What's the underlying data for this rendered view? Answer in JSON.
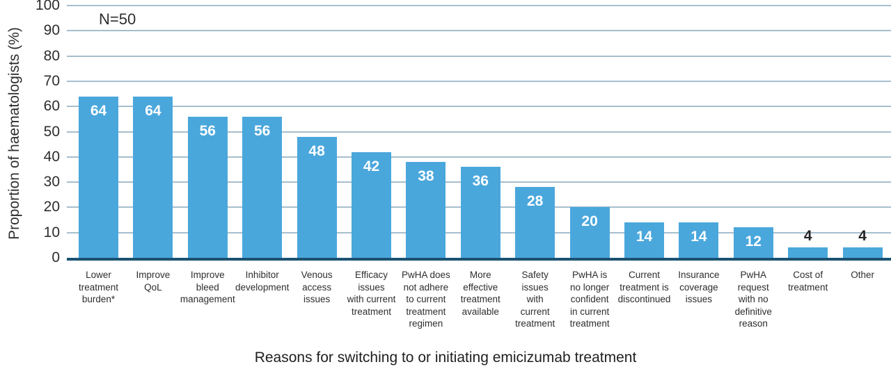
{
  "chart_data": {
    "type": "bar",
    "title": "",
    "xlabel": "Reasons for switching to or initiating emicizumab treatment",
    "ylabel": "Proportion of haematologists (%)",
    "annotation": "N=50",
    "ylim": [
      0,
      100
    ],
    "yticks": [
      0,
      10,
      20,
      30,
      40,
      50,
      60,
      70,
      80,
      90,
      100
    ],
    "grid": "horizontal",
    "legend": "none",
    "bar_color": "#4AA7DC",
    "axis_color": "#1B5272",
    "gridline_color": "#A6BECD",
    "value_label_inside_color": "#ffffff",
    "value_label_above_color": "#262626",
    "categories": [
      "Lower treatment burden*",
      "Improve QoL",
      "Improve bleed management",
      "Inhibitor development",
      "Venous access issues",
      "Efficacy issues with current treatment",
      "PwHA does not adhere to current treatment regimen",
      "More effective treatment available",
      "Safety issues with current treatment",
      "PwHA is no longer confident in current treatment",
      "Current treatment is discontinued",
      "Insurance coverage issues",
      "PwHA request with no definitive reason",
      "Cost of treatment",
      "Other"
    ],
    "values": [
      64,
      64,
      56,
      56,
      48,
      42,
      38,
      36,
      28,
      20,
      14,
      14,
      12,
      4,
      4
    ],
    "bars": [
      {
        "label_lines": [
          "Lower",
          "treatment",
          "burden*"
        ],
        "value": 64
      },
      {
        "label_lines": [
          "Improve",
          "QoL"
        ],
        "value": 64
      },
      {
        "label_lines": [
          "Improve",
          "bleed",
          "management"
        ],
        "value": 56
      },
      {
        "label_lines": [
          "Inhibitor",
          "development"
        ],
        "value": 56
      },
      {
        "label_lines": [
          "Venous",
          "access",
          "issues"
        ],
        "value": 48
      },
      {
        "label_lines": [
          "Efficacy",
          "issues",
          "with current",
          "treatment"
        ],
        "value": 42
      },
      {
        "label_lines": [
          "PwHA does",
          "not adhere",
          "to current",
          "treatment",
          "regimen"
        ],
        "value": 38
      },
      {
        "label_lines": [
          "More",
          "effective",
          "treatment",
          "available"
        ],
        "value": 36
      },
      {
        "label_lines": [
          "Safety",
          "issues",
          "with",
          "current",
          "treatment"
        ],
        "value": 28
      },
      {
        "label_lines": [
          "PwHA is",
          "no longer",
          "confident",
          "in current",
          "treatment"
        ],
        "value": 20
      },
      {
        "label_lines": [
          "Current",
          "treatment is",
          "discontinued"
        ],
        "value": 14
      },
      {
        "label_lines": [
          "Insurance",
          "coverage",
          "issues"
        ],
        "value": 14
      },
      {
        "label_lines": [
          "PwHA",
          "request",
          "with no",
          "definitive",
          "reason"
        ],
        "value": 12
      },
      {
        "label_lines": [
          "Cost of",
          "treatment"
        ],
        "value": 4
      },
      {
        "label_lines": [
          "Other"
        ],
        "value": 4
      }
    ]
  }
}
